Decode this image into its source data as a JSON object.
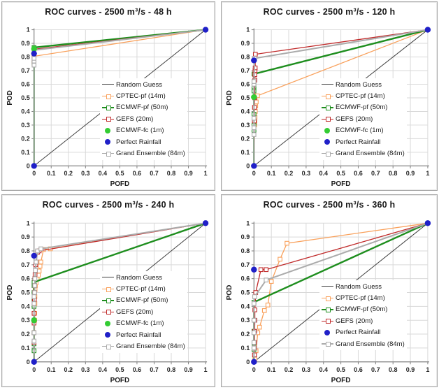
{
  "page": {
    "background": "#ffffff",
    "grid_color": "#d9d9d9",
    "axis_color": "#808080"
  },
  "chart_data": [
    {
      "type": "line",
      "title": "ROC curves - 2500 m³/s - 48 h",
      "xlabel": "POFD",
      "ylabel": "POD",
      "xlim": [
        0,
        1
      ],
      "ylim": [
        0,
        1
      ],
      "grid": true,
      "legend_position": "center-right",
      "legend_rows": 7,
      "xticks": [
        "0",
        "0.1",
        "0.2",
        "0.3",
        "0.4",
        "0.5",
        "0.6",
        "0.7",
        "0.8",
        "0.9",
        "1"
      ],
      "yticks": [
        "0",
        "0.1",
        "0.2",
        "0.3",
        "0.4",
        "0.5",
        "0.6",
        "0.7",
        "0.8",
        "0.9",
        "1"
      ],
      "series": [
        {
          "name": "Random Guess",
          "kind": "line",
          "color": "#404040",
          "width": 1,
          "points": [
            [
              0,
              0
            ],
            [
              1,
              1
            ]
          ]
        },
        {
          "name": "CPTEC-pf (14m)",
          "kind": "line-square",
          "color": "#f9a15c",
          "width": 1.3,
          "points": [
            [
              0,
              0
            ],
            [
              0,
              0.745
            ],
            [
              0,
              0.775
            ],
            [
              0,
              0.805
            ],
            [
              1,
              1
            ]
          ]
        },
        {
          "name": "ECMWF-pf (50m)",
          "kind": "line-square",
          "color": "#1e8e1e",
          "width": 2.4,
          "points": [
            [
              0,
              0
            ],
            [
              0,
              0.755
            ],
            [
              0,
              0.87
            ],
            [
              1,
              1
            ]
          ]
        },
        {
          "name": "GEFS (20m)",
          "kind": "line-square",
          "color": "#c02b2b",
          "width": 1.3,
          "points": [
            [
              0,
              0
            ],
            [
              0,
              0.765
            ],
            [
              0,
              0.8
            ],
            [
              0,
              0.857
            ],
            [
              1,
              1
            ]
          ]
        },
        {
          "name": "Grand Ensemble (84m)",
          "kind": "line-square",
          "color": "#ababab",
          "width": 2,
          "points": [
            [
              0,
              0
            ],
            [
              0,
              0.74
            ],
            [
              0,
              0.77
            ],
            [
              0,
              0.79
            ],
            [
              0,
              0.85
            ],
            [
              1,
              1
            ]
          ]
        },
        {
          "name": "ECMWF-fc (1m)",
          "kind": "dots",
          "color": "#33cc33",
          "points": [
            [
              0,
              0.86
            ]
          ]
        },
        {
          "name": "Perfect Rainfall",
          "kind": "dots",
          "color": "#2020c8",
          "points": [
            [
              0,
              0
            ],
            [
              0,
              0.825
            ],
            [
              1,
              1
            ]
          ]
        }
      ],
      "legend_order": [
        "Random Guess",
        "CPTEC-pf (14m)",
        "ECMWF-pf (50m)",
        "GEFS (20m)",
        "ECMWF-fc (1m)",
        "Perfect Rainfall",
        "Grand Ensemble (84m)"
      ]
    },
    {
      "type": "line",
      "title": "ROC curves - 2500 m³/s - 120 h",
      "xlabel": "POFD",
      "ylabel": "POD",
      "xlim": [
        0,
        1
      ],
      "ylim": [
        0,
        1
      ],
      "grid": true,
      "legend_position": "center-right",
      "legend_rows": 7,
      "xticks": [
        "0",
        "0.1",
        "0.2",
        "0.3",
        "0.4",
        "0.5",
        "0.6",
        "0.7",
        "0.8",
        "0.9",
        "1"
      ],
      "yticks": [
        "0",
        "0.1",
        "0.2",
        "0.3",
        "0.4",
        "0.5",
        "0.6",
        "0.7",
        "0.8",
        "0.9",
        "1"
      ],
      "series": [
        {
          "name": "Random Guess",
          "kind": "line",
          "color": "#404040",
          "width": 1,
          "points": [
            [
              0,
              0
            ],
            [
              1,
              1
            ]
          ]
        },
        {
          "name": "CPTEC-pf (14m)",
          "kind": "line-square",
          "color": "#f9a15c",
          "width": 1.3,
          "points": [
            [
              0,
              0
            ],
            [
              0.004,
              0.3
            ],
            [
              0.005,
              0.33
            ],
            [
              0.006,
              0.36
            ],
            [
              0.008,
              0.4
            ],
            [
              0.01,
              0.44
            ],
            [
              0.013,
              0.47
            ],
            [
              0.02,
              0.515
            ],
            [
              1,
              1
            ]
          ]
        },
        {
          "name": "ECMWF-pf (50m)",
          "kind": "line-square",
          "color": "#1e8e1e",
          "width": 2.4,
          "points": [
            [
              0,
              0
            ],
            [
              0,
              0.26
            ],
            [
              0,
              0.3
            ],
            [
              0,
              0.38
            ],
            [
              0,
              0.55
            ],
            [
              0,
              0.58
            ],
            [
              0,
              0.62
            ],
            [
              0,
              0.675
            ],
            [
              1,
              1
            ]
          ]
        },
        {
          "name": "GEFS (20m)",
          "kind": "line-square",
          "color": "#c02b2b",
          "width": 1.3,
          "points": [
            [
              0,
              0
            ],
            [
              0.002,
              0.33
            ],
            [
              0.003,
              0.43
            ],
            [
              0.004,
              0.5
            ],
            [
              0.005,
              0.63
            ],
            [
              0.005,
              0.67
            ],
            [
              0.006,
              0.7
            ],
            [
              0.007,
              0.72
            ],
            [
              0.008,
              0.82
            ],
            [
              1,
              1
            ]
          ]
        },
        {
          "name": "Grand Ensemble (84m)",
          "kind": "line-square",
          "color": "#ababab",
          "width": 2,
          "points": [
            [
              0,
              0
            ],
            [
              0,
              0.23
            ],
            [
              0,
              0.28
            ],
            [
              0,
              0.35
            ],
            [
              0,
              0.6
            ],
            [
              0,
              0.62
            ],
            [
              0.004,
              0.79
            ],
            [
              1,
              1
            ]
          ]
        },
        {
          "name": "ECMWF-fc (1m)",
          "kind": "dots",
          "color": "#33cc33",
          "points": [
            [
              0,
              0.505
            ]
          ]
        },
        {
          "name": "Perfect Rainfall",
          "kind": "dots",
          "color": "#2020c8",
          "points": [
            [
              0,
              0
            ],
            [
              0,
              0.775
            ],
            [
              1,
              1
            ]
          ]
        }
      ],
      "legend_order": [
        "Random Guess",
        "CPTEC-pf (14m)",
        "ECMWF-pf (50m)",
        "GEFS (20m)",
        "ECMWF-fc (1m)",
        "Perfect Rainfall",
        "Grand Ensemble (84m)"
      ]
    },
    {
      "type": "line",
      "title": "ROC curves - 2500 m³/s - 240 h",
      "xlabel": "POFD",
      "ylabel": "POD",
      "xlim": [
        0,
        1
      ],
      "ylim": [
        0,
        1
      ],
      "grid": true,
      "legend_position": "center-right",
      "legend_rows": 7,
      "xticks": [
        "0",
        "0.1",
        "0.2",
        "0.3",
        "0.4",
        "0.5",
        "0.6",
        "0.7",
        "0.8",
        "0.9",
        "1"
      ],
      "yticks": [
        "0",
        "0.1",
        "0.2",
        "0.3",
        "0.4",
        "0.5",
        "0.6",
        "0.7",
        "0.8",
        "0.9",
        "1"
      ],
      "series": [
        {
          "name": "Random Guess",
          "kind": "line",
          "color": "#404040",
          "width": 1,
          "points": [
            [
              0,
              0
            ],
            [
              1,
              1
            ]
          ]
        },
        {
          "name": "CPTEC-pf (14m)",
          "kind": "line-square",
          "color": "#f9a15c",
          "width": 1.3,
          "points": [
            [
              0,
              0
            ],
            [
              0.004,
              0.3
            ],
            [
              0.004,
              0.35
            ],
            [
              0.005,
              0.42
            ],
            [
              0.005,
              0.47
            ],
            [
              0.006,
              0.52
            ],
            [
              0.008,
              0.55
            ],
            [
              0.012,
              0.57
            ],
            [
              0.018,
              0.6
            ],
            [
              0.025,
              0.625
            ],
            [
              0.03,
              0.655
            ],
            [
              0.035,
              0.69
            ],
            [
              0.04,
              0.72
            ],
            [
              0.055,
              0.81
            ],
            [
              0.095,
              0.815
            ],
            [
              1,
              1
            ]
          ]
        },
        {
          "name": "ECMWF-pf (50m)",
          "kind": "line-square",
          "color": "#1e8e1e",
          "width": 2.4,
          "points": [
            [
              0,
              0
            ],
            [
              0,
              0.08
            ],
            [
              0,
              0.13
            ],
            [
              0,
              0.21
            ],
            [
              0,
              0.3
            ],
            [
              0,
              0.4
            ],
            [
              0,
              0.45
            ],
            [
              0,
              0.5
            ],
            [
              0,
              0.55
            ],
            [
              0,
              0.575
            ],
            [
              1,
              1
            ]
          ]
        },
        {
          "name": "GEFS (20m)",
          "kind": "line-square",
          "color": "#c02b2b",
          "width": 1.3,
          "points": [
            [
              0,
              0
            ],
            [
              0,
              0.14
            ],
            [
              0,
              0.21
            ],
            [
              0,
              0.28
            ],
            [
              0,
              0.35
            ],
            [
              0,
              0.42
            ],
            [
              0.002,
              0.45
            ],
            [
              0.003,
              0.5
            ],
            [
              0.004,
              0.55
            ],
            [
              0.004,
              0.6
            ],
            [
              0.006,
              0.63
            ],
            [
              0.008,
              0.66
            ],
            [
              0.01,
              0.7
            ],
            [
              0.013,
              0.72
            ],
            [
              0.02,
              0.79
            ],
            [
              0.03,
              0.8
            ],
            [
              1,
              1
            ]
          ]
        },
        {
          "name": "Grand Ensemble (84m)",
          "kind": "line-square",
          "color": "#ababab",
          "width": 2,
          "points": [
            [
              0,
              0
            ],
            [
              0,
              0.15
            ],
            [
              0,
              0.21
            ],
            [
              0,
              0.3
            ],
            [
              0,
              0.42
            ],
            [
              0,
              0.47
            ],
            [
              0.003,
              0.5
            ],
            [
              0.004,
              0.55
            ],
            [
              0.005,
              0.6
            ],
            [
              0.008,
              0.66
            ],
            [
              0.012,
              0.72
            ],
            [
              0.02,
              0.8
            ],
            [
              0.04,
              0.815
            ],
            [
              1,
              1
            ]
          ]
        },
        {
          "name": "ECMWF-fc (1m)",
          "kind": "dots",
          "color": "#33cc33",
          "points": [
            [
              0,
              0.3
            ]
          ]
        },
        {
          "name": "Perfect Rainfall",
          "kind": "dots",
          "color": "#2020c8",
          "points": [
            [
              0,
              0
            ],
            [
              0,
              0.765
            ],
            [
              1,
              1
            ]
          ]
        }
      ],
      "legend_order": [
        "Random Guess",
        "CPTEC-pf (14m)",
        "ECMWF-pf (50m)",
        "GEFS (20m)",
        "ECMWF-fc (1m)",
        "Perfect Rainfall",
        "Grand Ensemble (84m)"
      ]
    },
    {
      "type": "line",
      "title": "ROC curves - 2500 m³/s - 360 h",
      "xlabel": "POFD",
      "ylabel": "POD",
      "xlim": [
        0,
        1
      ],
      "ylim": [
        0,
        1
      ],
      "grid": true,
      "legend_position": "center-right",
      "legend_rows": 6,
      "xticks": [
        "0",
        "0.1",
        "0.2",
        "0.3",
        "0.4",
        "0.5",
        "0.6",
        "0.7",
        "0.8",
        "0.9",
        "1"
      ],
      "yticks": [
        "0",
        "0.1",
        "0.2",
        "0.3",
        "0.4",
        "0.5",
        "0.6",
        "0.7",
        "0.8",
        "0.9",
        "1"
      ],
      "series": [
        {
          "name": "Random Guess",
          "kind": "line",
          "color": "#404040",
          "width": 1,
          "points": [
            [
              0,
              0
            ],
            [
              1,
              1
            ]
          ]
        },
        {
          "name": "CPTEC-pf (14m)",
          "kind": "line-square",
          "color": "#f9a15c",
          "width": 1.3,
          "points": [
            [
              0,
              0
            ],
            [
              0.005,
              0.02
            ],
            [
              0.012,
              0.08
            ],
            [
              0.022,
              0.21
            ],
            [
              0.032,
              0.25
            ],
            [
              0.06,
              0.37
            ],
            [
              0.08,
              0.41
            ],
            [
              0.1,
              0.58
            ],
            [
              0.15,
              0.74
            ],
            [
              0.19,
              0.855
            ],
            [
              1,
              1
            ]
          ]
        },
        {
          "name": "ECMWF-pf (50m)",
          "kind": "line-square",
          "color": "#1e8e1e",
          "width": 2.4,
          "points": [
            [
              0,
              0
            ],
            [
              0,
              0.09
            ],
            [
              0,
              0.135
            ],
            [
              0,
              0.22
            ],
            [
              0,
              0.43
            ],
            [
              1,
              1
            ]
          ]
        },
        {
          "name": "GEFS (20m)",
          "kind": "line-square",
          "color": "#c02b2b",
          "width": 1.3,
          "points": [
            [
              0,
              0
            ],
            [
              0.003,
              0.05
            ],
            [
              0.003,
              0.1
            ],
            [
              0.004,
              0.14
            ],
            [
              0.004,
              0.22
            ],
            [
              0.005,
              0.3
            ],
            [
              0.005,
              0.375
            ],
            [
              0.01,
              0.5
            ],
            [
              0.04,
              0.665
            ],
            [
              0.07,
              0.665
            ],
            [
              1,
              1
            ]
          ]
        },
        {
          "name": "Grand Ensemble (84m)",
          "kind": "line-square",
          "color": "#ababab",
          "width": 2,
          "points": [
            [
              0,
              0
            ],
            [
              0,
              0.1
            ],
            [
              0,
              0.14
            ],
            [
              0,
              0.21
            ],
            [
              0,
              0.3
            ],
            [
              0,
              0.42
            ],
            [
              0.004,
              0.47
            ],
            [
              0.07,
              0.59
            ],
            [
              1,
              1
            ]
          ]
        },
        {
          "name": "Perfect Rainfall",
          "kind": "dots",
          "color": "#2020c8",
          "points": [
            [
              0,
              0
            ],
            [
              0,
              0.665
            ],
            [
              1,
              1
            ]
          ]
        }
      ],
      "legend_order": [
        "Random Guess",
        "CPTEC-pf (14m)",
        "ECMWF-pf (50m)",
        "GEFS (20m)",
        "Perfect Rainfall",
        "Grand Ensemble (84m)"
      ]
    }
  ]
}
